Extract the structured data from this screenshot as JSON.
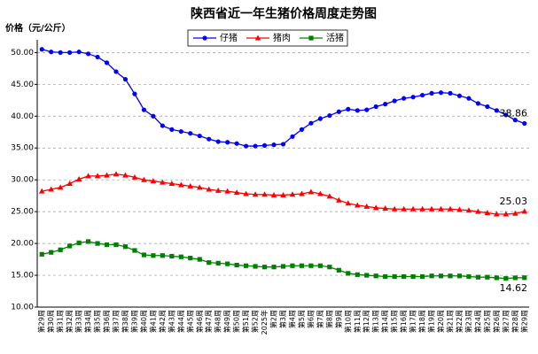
{
  "chart_data": {
    "type": "line",
    "title": "陕西省近一年生猪价格周度走势图",
    "y_label": "价格（元/公斤）",
    "categories": [
      "第29周",
      "第30周",
      "第31周",
      "第32周",
      "第33周",
      "第34周",
      "第35周",
      "第36周",
      "第37周",
      "第38周",
      "第39周",
      "第40周",
      "第41周",
      "第42周",
      "第43周",
      "第44周",
      "第45周",
      "第46周",
      "第47周",
      "第48周",
      "第49周",
      "第50周",
      "第51周",
      "第52周",
      "2025年",
      "第2周",
      "第3周",
      "第4周",
      "第5周",
      "第6周",
      "第7周",
      "第8周",
      "第9周",
      "第10周",
      "第11周",
      "第12周",
      "第13周",
      "第14周",
      "第15周",
      "第16周",
      "第17周",
      "第18周",
      "第19周",
      "第20周",
      "第21周",
      "第22周",
      "第23周",
      "第24周",
      "第25周",
      "第26周",
      "第27周",
      "第28周",
      "第29周"
    ],
    "series": [
      {
        "name": "仔猪",
        "color": "#0000ff",
        "marker": "circle",
        "values": [
          50.5,
          50.1,
          50.0,
          50.0,
          50.1,
          49.8,
          49.3,
          48.4,
          47.0,
          45.8,
          43.5,
          41.0,
          40.0,
          38.5,
          37.9,
          37.6,
          37.3,
          36.9,
          36.4,
          36.0,
          35.9,
          35.7,
          35.3,
          35.3,
          35.4,
          35.5,
          35.6,
          36.8,
          37.9,
          38.9,
          39.6,
          40.1,
          40.7,
          41.1,
          40.9,
          41.0,
          41.5,
          41.9,
          42.4,
          42.8,
          43.0,
          43.3,
          43.6,
          43.7,
          43.6,
          43.2,
          42.8,
          42.0,
          41.5,
          40.9,
          40.2,
          39.4,
          38.86
        ]
      },
      {
        "name": "猪肉",
        "color": "#ff0000",
        "marker": "triangle",
        "values": [
          28.2,
          28.5,
          28.8,
          29.4,
          30.1,
          30.6,
          30.6,
          30.7,
          30.9,
          30.7,
          30.4,
          30.0,
          29.8,
          29.6,
          29.4,
          29.2,
          29.0,
          28.8,
          28.5,
          28.3,
          28.2,
          28.0,
          27.8,
          27.7,
          27.7,
          27.6,
          27.6,
          27.7,
          27.8,
          28.1,
          27.8,
          27.4,
          26.8,
          26.3,
          26.0,
          25.8,
          25.6,
          25.5,
          25.4,
          25.4,
          25.4,
          25.4,
          25.4,
          25.4,
          25.4,
          25.3,
          25.2,
          25.0,
          24.8,
          24.6,
          24.6,
          24.7,
          25.03
        ]
      },
      {
        "name": "活猪",
        "color": "#008000",
        "marker": "square",
        "values": [
          18.3,
          18.6,
          19.0,
          19.6,
          20.1,
          20.3,
          20.0,
          19.8,
          19.8,
          19.5,
          18.9,
          18.2,
          18.1,
          18.1,
          18.0,
          17.9,
          17.7,
          17.5,
          17.0,
          16.9,
          16.8,
          16.6,
          16.5,
          16.4,
          16.3,
          16.3,
          16.4,
          16.5,
          16.5,
          16.5,
          16.5,
          16.3,
          15.8,
          15.3,
          15.1,
          15.0,
          14.9,
          14.8,
          14.8,
          14.8,
          14.8,
          14.8,
          14.9,
          14.9,
          14.9,
          14.9,
          14.8,
          14.7,
          14.7,
          14.6,
          14.5,
          14.6,
          14.62
        ]
      }
    ],
    "ylim": [
      10,
      52
    ],
    "yticks": [
      {
        "value": 10,
        "label": "10.00"
      },
      {
        "value": 15,
        "label": "15.00"
      },
      {
        "value": 20,
        "label": "20.00"
      },
      {
        "value": 25,
        "label": "25.00"
      },
      {
        "value": 30,
        "label": "30.00"
      },
      {
        "value": 35,
        "label": "35.00"
      },
      {
        "value": 40,
        "label": "40.00"
      },
      {
        "value": 45,
        "label": "45.00"
      },
      {
        "value": 50,
        "label": "50.00"
      }
    ],
    "grid": true,
    "legend": "top"
  }
}
